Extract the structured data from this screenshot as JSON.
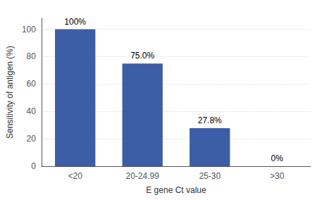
{
  "chart_data": {
    "type": "bar",
    "categories": [
      "<20",
      "20-24.99",
      "25-30",
      ">30"
    ],
    "values": [
      100,
      75.0,
      27.8,
      0
    ],
    "value_labels": [
      "100%",
      "75.0%",
      "27.8%",
      "0%"
    ],
    "data_labels": true,
    "color": "#3b5ea6",
    "xlabel": "E gene Ct value",
    "ylabel": "Sensitivity of antigen (%)",
    "ylim": [
      0,
      108
    ],
    "yticks": [
      0,
      20,
      40,
      60,
      80,
      100
    ],
    "grid": true
  }
}
